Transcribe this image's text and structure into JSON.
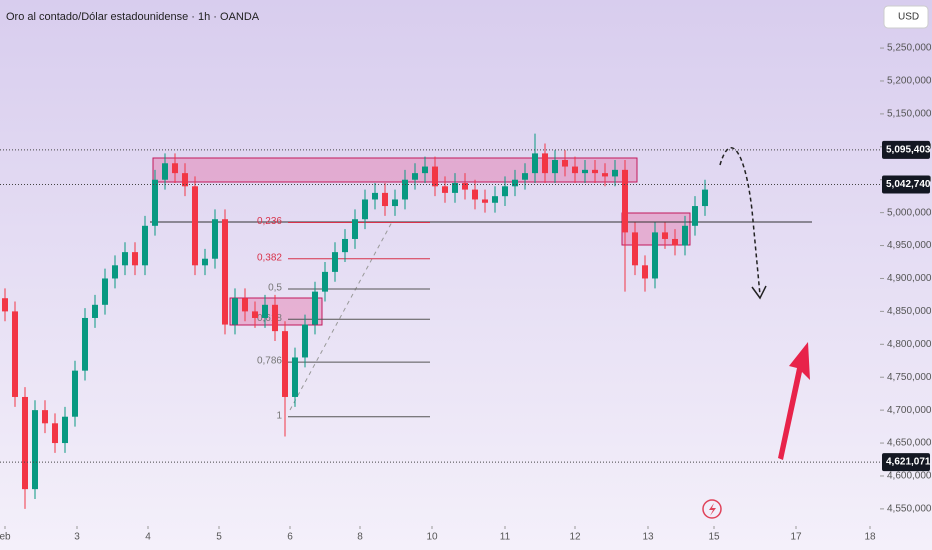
{
  "chart_data": {
    "type": "candlestick",
    "title": "Oro al contado/Dólar estadounidense · 1h · OANDA",
    "currency": "USD",
    "up_color": "#089981",
    "down_color": "#f23645",
    "open": [
      4870000,
      4850000,
      4720000,
      4580000,
      4700000,
      4680000,
      4650000,
      4690000,
      4760000,
      4840000,
      4860000,
      4900000,
      4920000,
      4940000,
      4920000,
      4980000,
      5050000,
      5075000,
      5060000,
      5040000,
      4920000,
      4930000,
      4990000,
      4830000,
      4870000,
      4850000,
      4840000,
      4860000,
      4820000,
      4720000,
      4780000,
      4830000,
      4880000,
      4910000,
      4940000,
      4960000,
      4990000,
      5020000,
      5030000,
      5010000,
      5020000,
      5050000,
      5060000,
      5070000,
      5040000,
      5030000,
      5045000,
      5035000,
      5020000,
      5015000,
      5025000,
      5040000,
      5050000,
      5060000,
      5090000,
      5060000,
      5080000,
      5070000,
      5060000,
      5065000,
      5060000,
      5055000,
      5065000,
      4970000,
      4920000,
      4900000,
      4970000,
      4960000,
      4950000,
      4980000,
      5010000
    ],
    "high": [
      4885000,
      4865000,
      4735000,
      4715000,
      4715000,
      4695000,
      4705000,
      4775000,
      4855000,
      4875000,
      4915000,
      4935000,
      4955000,
      4955000,
      4995000,
      5065000,
      5090000,
      5090000,
      5075000,
      5055000,
      4945000,
      5005000,
      5005000,
      4885000,
      4885000,
      4865000,
      4875000,
      4875000,
      4835000,
      4795000,
      4845000,
      4895000,
      4925000,
      4955000,
      4975000,
      5005000,
      5035000,
      5045000,
      5045000,
      5035000,
      5065000,
      5075000,
      5085000,
      5085000,
      5055000,
      5060000,
      5060000,
      5050000,
      5035000,
      5040000,
      5055000,
      5065000,
      5075000,
      5120000,
      5105000,
      5095000,
      5095000,
      5085000,
      5080000,
      5080000,
      5075000,
      5080000,
      5080000,
      4985000,
      4935000,
      4985000,
      4985000,
      4975000,
      4995000,
      5025000,
      5050000
    ],
    "low": [
      4835000,
      4705000,
      4550000,
      4565000,
      4665000,
      4635000,
      4635000,
      4675000,
      4745000,
      4825000,
      4845000,
      4885000,
      4905000,
      4905000,
      4905000,
      4965000,
      5035000,
      5045000,
      5025000,
      4905000,
      4905000,
      4915000,
      4815000,
      4815000,
      4835000,
      4825000,
      4825000,
      4805000,
      4660000,
      4705000,
      4765000,
      4815000,
      4865000,
      4895000,
      4925000,
      4945000,
      4975000,
      5005000,
      4995000,
      4995000,
      5005000,
      5035000,
      5045000,
      5025000,
      5015000,
      5015000,
      5020000,
      5005000,
      5000000,
      5000000,
      5010000,
      5025000,
      5035000,
      5045000,
      5045000,
      5045000,
      5055000,
      5045000,
      5045000,
      5045000,
      5040000,
      5040000,
      4880000,
      4905000,
      4880000,
      4885000,
      4945000,
      4935000,
      4935000,
      4965000,
      4995000
    ],
    "close": [
      4850000,
      4720000,
      4580000,
      4700000,
      4680000,
      4650000,
      4690000,
      4760000,
      4840000,
      4860000,
      4900000,
      4920000,
      4940000,
      4920000,
      4980000,
      5050000,
      5075000,
      5060000,
      5040000,
      4920000,
      4930000,
      4990000,
      4830000,
      4870000,
      4850000,
      4840000,
      4860000,
      4820000,
      4720000,
      4780000,
      4830000,
      4880000,
      4910000,
      4940000,
      4960000,
      4990000,
      5020000,
      5030000,
      5010000,
      5020000,
      5050000,
      5060000,
      5070000,
      5040000,
      5030000,
      5045000,
      5035000,
      5020000,
      5015000,
      5025000,
      5040000,
      5050000,
      5060000,
      5090000,
      5060000,
      5080000,
      5070000,
      5060000,
      5065000,
      5060000,
      5055000,
      5065000,
      4970000,
      4920000,
      4900000,
      4970000,
      4960000,
      4950000,
      4980000,
      5010000,
      5035000
    ],
    "xlim": [
      -0.5,
      87.5
    ],
    "xticks": [
      {
        "value": 0,
        "label": "eb"
      },
      {
        "value": 7.2,
        "label": "3"
      },
      {
        "value": 14.3,
        "label": "4"
      },
      {
        "value": 21.4,
        "label": "5"
      },
      {
        "value": 28.5,
        "label": "6"
      },
      {
        "value": 35.5,
        "label": "8"
      },
      {
        "value": 42.7,
        "label": "10"
      },
      {
        "value": 50,
        "label": "11"
      },
      {
        "value": 57,
        "label": "12"
      },
      {
        "value": 64.3,
        "label": "13"
      },
      {
        "value": 70.9,
        "label": "15"
      },
      {
        "value": 79.1,
        "label": "17"
      },
      {
        "value": 86.5,
        "label": "18"
      }
    ],
    "ylim": [
      4524000,
      5323000
    ],
    "yticks": [
      {
        "value": 5250000,
        "label": "5,250,000"
      },
      {
        "value": 5200000,
        "label": "5,200,000"
      },
      {
        "value": 5150000,
        "label": "5,150,000"
      },
      {
        "value": 5100000,
        "label": "5,100,000"
      },
      {
        "value": 5050000,
        "label": "5,050,000"
      },
      {
        "value": 5000000,
        "label": "5,000,000"
      },
      {
        "value": 4950000,
        "label": "4,950,000"
      },
      {
        "value": 4900000,
        "label": "4,900,000"
      },
      {
        "value": 4850000,
        "label": "4,850,000"
      },
      {
        "value": 4800000,
        "label": "4,800,000"
      },
      {
        "value": 4750000,
        "label": "4,750,000"
      },
      {
        "value": 4700000,
        "label": "4,700,000"
      },
      {
        "value": 4650000,
        "label": "4,650,000"
      },
      {
        "value": 4600000,
        "label": "4,600,000"
      },
      {
        "value": 4550000,
        "label": "4,550,000"
      }
    ],
    "price_tags": [
      {
        "value": 5095403,
        "label": "5,095,403"
      },
      {
        "value": 5042740,
        "label": "5,042,740"
      },
      {
        "value": 4621071,
        "label": "4,621,071"
      }
    ],
    "fib_levels": [
      {
        "value": 4985000,
        "label": "0,236"
      },
      {
        "value": 4930000,
        "label": "0,382"
      },
      {
        "value": 4884000,
        "label": "0,5"
      },
      {
        "value": 4838000,
        "label": "0,618"
      },
      {
        "value": 4773000,
        "label": "0,786"
      },
      {
        "value": 4690000,
        "label": "1"
      }
    ]
  }
}
